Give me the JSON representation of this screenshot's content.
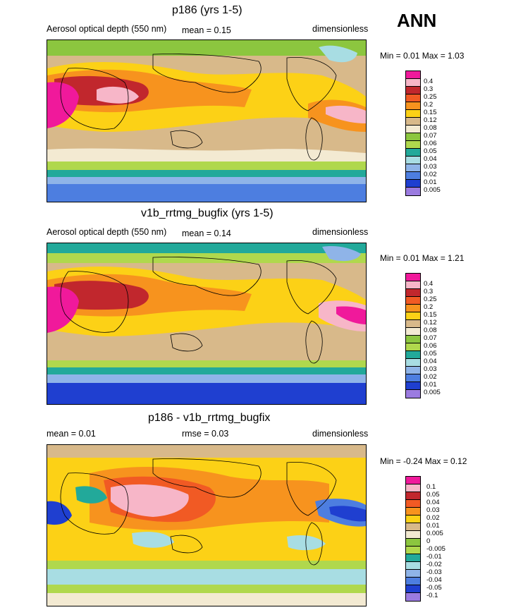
{
  "season": "ANN",
  "panels": [
    {
      "title": "p186 (yrs 1-5)",
      "left_label": "Aerosol optical depth (550 nm)",
      "mean_text": "mean =  0.15",
      "units": "dimensionless",
      "minmax": "Min =  0.01 Max =  1.03",
      "levels": [
        "0.4",
        "0.3",
        "0.25",
        "0.2",
        "0.15",
        "0.12",
        "0.08",
        "0.07",
        "0.06",
        "0.05",
        "0.04",
        "0.03",
        "0.02",
        "0.01",
        "0.005"
      ],
      "colors": [
        "#f0199b",
        "#f7b6c8",
        "#c1272d",
        "#f15a24",
        "#f7931e",
        "#fcd116",
        "#d8b98a",
        "#f3ead2",
        "#8cc63f",
        "#b0d84d",
        "#22a99a",
        "#a8dde3",
        "#8fb4e8",
        "#4d7ee0",
        "#1f3fd0",
        "#9b7be0"
      ]
    },
    {
      "title": "v1b_rrtmg_bugfix (yrs 1-5)",
      "left_label": "Aerosol optical depth (550 nm)",
      "mean_text": "mean =  0.14",
      "units": "dimensionless",
      "minmax": "Min =  0.01 Max =  1.21",
      "levels": [
        "0.4",
        "0.3",
        "0.25",
        "0.2",
        "0.15",
        "0.12",
        "0.08",
        "0.07",
        "0.06",
        "0.05",
        "0.04",
        "0.03",
        "0.02",
        "0.01",
        "0.005"
      ],
      "colors": [
        "#f0199b",
        "#f7b6c8",
        "#c1272d",
        "#f15a24",
        "#f7931e",
        "#fcd116",
        "#d8b98a",
        "#f3ead2",
        "#8cc63f",
        "#b0d84d",
        "#22a99a",
        "#a8dde3",
        "#8fb4e8",
        "#4d7ee0",
        "#1f3fd0",
        "#9b7be0"
      ]
    },
    {
      "title": "p186 - v1b_rrtmg_bugfix",
      "left_label": "mean =   0.01",
      "mean_text": "rmse =   0.03",
      "units": "dimensionless",
      "minmax": "Min =  -0.24 Max =  0.12",
      "levels": [
        "0.1",
        "0.05",
        "0.04",
        "0.03",
        "0.02",
        "0.01",
        "0.005",
        "0",
        "-0.005",
        "-0.01",
        "-0.02",
        "-0.03",
        "-0.04",
        "-0.05",
        "-0.1"
      ],
      "colors": [
        "#f0199b",
        "#f7b6c8",
        "#c1272d",
        "#f15a24",
        "#f7931e",
        "#fcd116",
        "#d8b98a",
        "#f3ead2",
        "#8cc63f",
        "#b0d84d",
        "#22a99a",
        "#a8dde3",
        "#8fb4e8",
        "#4d7ee0",
        "#1f3fd0",
        "#9b7be0"
      ]
    }
  ]
}
